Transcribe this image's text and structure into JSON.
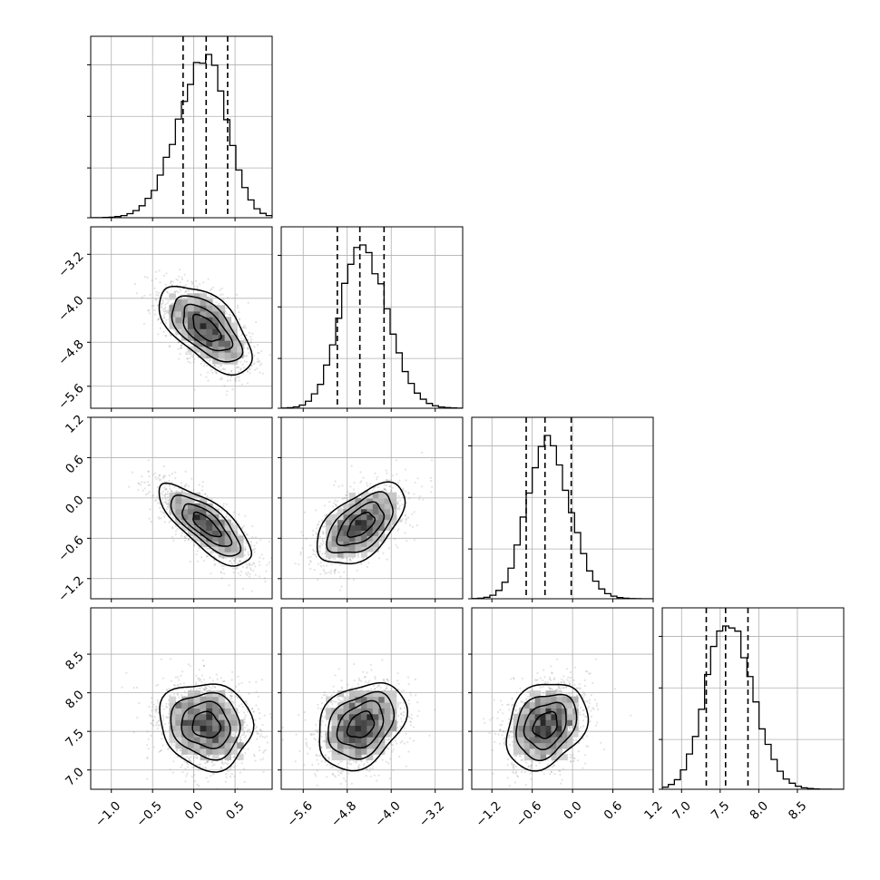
{
  "chart_data": {
    "type": "corner",
    "title": "",
    "grid": true,
    "parameters": [
      {
        "label": "",
        "range": [
          -1.25,
          0.95
        ],
        "center": 0.15,
        "sigma": 0.28,
        "quantiles": [
          -0.13,
          0.15,
          0.41
        ],
        "ticks": [
          -1.0,
          -0.5,
          0.0,
          0.5
        ],
        "tick_labels": [
          "−1.0",
          "−0.5",
          "0.0",
          "0.5"
        ]
      },
      {
        "label": "",
        "range": [
          -6.0,
          -2.7
        ],
        "center": -4.55,
        "sigma": 0.4,
        "quantiles": [
          -4.98,
          -4.57,
          -4.13
        ],
        "ticks": [
          -5.6,
          -4.8,
          -4.0,
          -3.2
        ],
        "tick_labels": [
          "−5.6",
          "−4.8",
          "−4.0",
          "−3.2"
        ]
      },
      {
        "label": "",
        "range": [
          -1.5,
          1.2
        ],
        "center": -0.4,
        "sigma": 0.3,
        "quantiles": [
          -0.69,
          -0.41,
          -0.02
        ],
        "ticks": [
          -1.2,
          -0.6,
          0.0,
          0.6,
          1.2
        ],
        "tick_labels": [
          "−1.2",
          "−0.6",
          "0.0",
          "0.6",
          "1.2"
        ]
      },
      {
        "label": "",
        "range": [
          6.75,
          9.1
        ],
        "center": 7.58,
        "sigma": 0.28,
        "quantiles": [
          7.32,
          7.57,
          7.86
        ],
        "ticks": [
          7.0,
          7.5,
          8.0,
          8.5
        ],
        "tick_labels": [
          "7.0",
          "7.5",
          "8.0",
          "8.5"
        ]
      }
    ],
    "correlations": [
      [
        1.0,
        -0.6,
        -0.75,
        -0.1
      ],
      [
        -0.6,
        1.0,
        0.55,
        0.3
      ],
      [
        -0.75,
        0.55,
        1.0,
        0.25
      ],
      [
        -0.1,
        0.3,
        0.25,
        1.0
      ]
    ],
    "colors": {
      "line": "#000000",
      "points": "#7f7f7f",
      "grid": "#b0b0b0",
      "background": "#ffffff"
    }
  }
}
